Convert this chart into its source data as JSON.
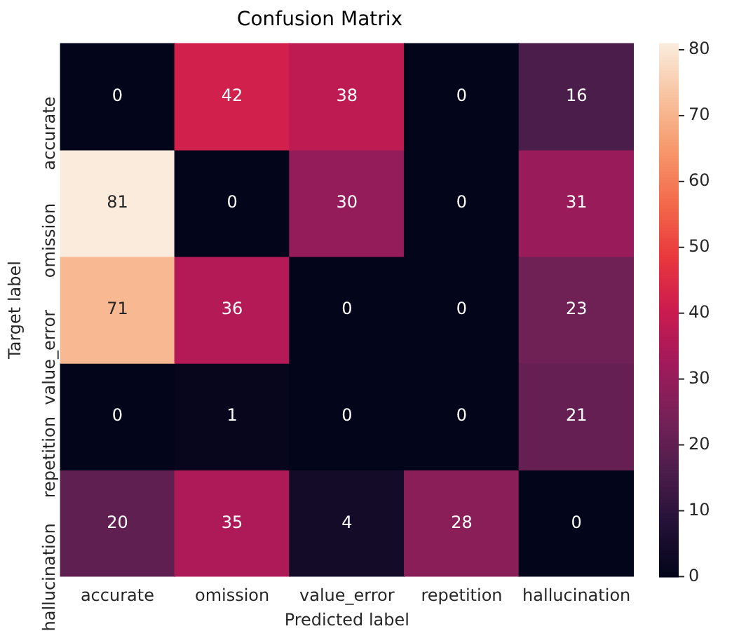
{
  "chart_data": {
    "type": "heatmap",
    "title": "Confusion Matrix",
    "xlabel": "Predicted label",
    "ylabel": "Target label",
    "categories": [
      "accurate",
      "omission",
      "value_error",
      "repetition",
      "hallucination"
    ],
    "y_categories": [
      "accurate",
      "omission",
      "value_error",
      "repetition",
      "hallucination"
    ],
    "cells": [
      [
        0,
        42,
        38,
        0,
        16
      ],
      [
        81,
        0,
        30,
        0,
        31
      ],
      [
        71,
        36,
        0,
        0,
        23
      ],
      [
        0,
        1,
        0,
        0,
        21
      ],
      [
        20,
        35,
        4,
        28,
        0
      ]
    ],
    "data_labels": true,
    "clim": [
      0,
      81
    ],
    "cticks": [
      0,
      10,
      20,
      30,
      40,
      50,
      60,
      70,
      80
    ]
  }
}
